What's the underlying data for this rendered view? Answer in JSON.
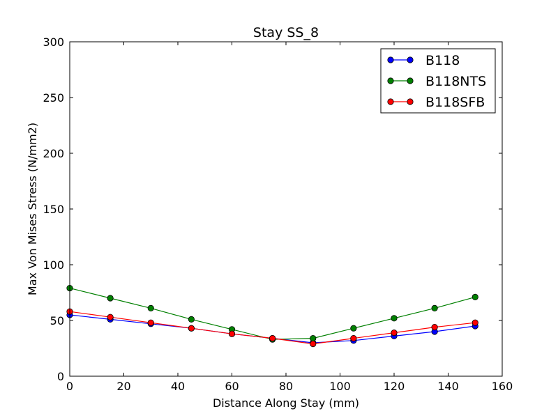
{
  "chart_data": {
    "type": "line",
    "title": "Stay SS_8",
    "xlabel": "Distance Along Stay (mm)",
    "ylabel": "Max Von Mises Stress (N/mm2)",
    "xlim": [
      0,
      160
    ],
    "ylim": [
      0,
      300
    ],
    "xticks": [
      0,
      20,
      40,
      60,
      80,
      100,
      120,
      140,
      160
    ],
    "yticks": [
      0,
      50,
      100,
      150,
      200,
      250,
      300
    ],
    "grid": false,
    "legend_position": "top-right",
    "x": [
      0,
      15,
      30,
      45,
      60,
      75,
      90,
      105,
      120,
      135,
      150
    ],
    "series": [
      {
        "name": "B118",
        "color": "#0000ff",
        "values": [
          55,
          51,
          47,
          43,
          38,
          34,
          30,
          32,
          36,
          40,
          45
        ]
      },
      {
        "name": "B118NTS",
        "color": "#008000",
        "values": [
          79,
          70,
          61,
          51,
          42,
          33,
          34,
          43,
          52,
          61,
          71
        ]
      },
      {
        "name": "B118SFB",
        "color": "#ff0000",
        "values": [
          58,
          53,
          48,
          43,
          38,
          34,
          29,
          34,
          39,
          44,
          48
        ]
      }
    ]
  }
}
